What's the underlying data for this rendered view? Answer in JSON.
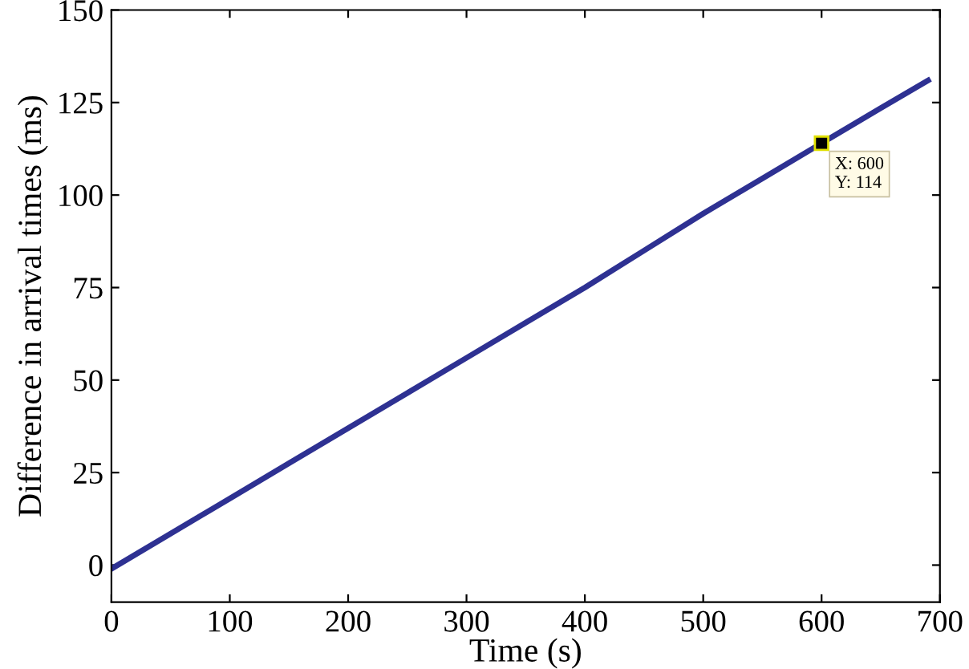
{
  "chart_data": {
    "type": "line",
    "xlabel": "Time (s)",
    "ylabel": "Difference in arrival times (ms)",
    "x": [
      0,
      50,
      100,
      150,
      200,
      250,
      300,
      350,
      400,
      450,
      500,
      550,
      600,
      650,
      690
    ],
    "series": [
      {
        "color": "#2e3192",
        "values": [
          -1,
          8.5,
          18,
          27.5,
          37,
          46.5,
          56,
          65.5,
          75,
          85,
          95,
          104.5,
          114,
          123.5,
          131
        ]
      }
    ],
    "xlim": [
      0,
      700
    ],
    "xticks": [
      0,
      100,
      200,
      300,
      400,
      500,
      600,
      700
    ],
    "ylim": [
      -10,
      150
    ],
    "yticks": [
      0,
      25,
      50,
      75,
      100,
      125,
      150
    ],
    "annotations": [
      {
        "text": "X: 600\nY: 114",
        "x": 600,
        "y": 114
      }
    ]
  }
}
